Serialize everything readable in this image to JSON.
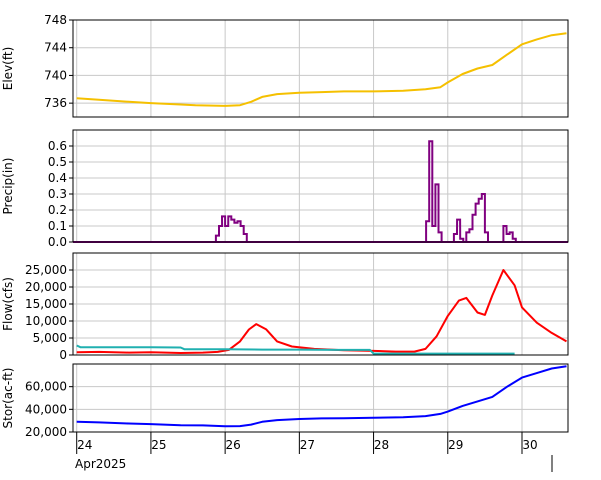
{
  "chart_data": [
    {
      "type": "line",
      "ylabel": "Elev(ft)",
      "ylim": [
        734,
        748
      ],
      "yticks": [
        736,
        740,
        744,
        748
      ],
      "ytick_labels": [
        "736",
        "740",
        "744",
        "748"
      ],
      "color": "#f5c000",
      "x": [
        24.0,
        24.3,
        24.7,
        25.0,
        25.4,
        25.6,
        26.0,
        26.2,
        26.35,
        26.5,
        26.7,
        27.0,
        27.3,
        27.6,
        28.0,
        28.4,
        28.7,
        28.9,
        29.0,
        29.2,
        29.4,
        29.6,
        29.8,
        30.0,
        30.2,
        30.4,
        30.6
      ],
      "values": [
        736.7,
        736.5,
        736.2,
        736.0,
        735.8,
        735.7,
        735.6,
        735.7,
        736.2,
        736.9,
        737.3,
        737.5,
        737.6,
        737.7,
        737.7,
        737.8,
        738.0,
        738.3,
        739.0,
        740.2,
        741.0,
        741.5,
        743.0,
        744.5,
        745.2,
        745.8,
        746.1
      ]
    },
    {
      "type": "bar",
      "ylabel": "Precip(in)",
      "ylim": [
        0,
        0.7
      ],
      "yticks": [
        0,
        0.1,
        0.2,
        0.3,
        0.4,
        0.5,
        0.6
      ],
      "ytick_labels": [
        "0.0",
        "0.1",
        "0.2",
        "0.3",
        "0.4",
        "0.5",
        "0.6"
      ],
      "color": "#800080",
      "step_hours": 1,
      "x": [
        25.875,
        25.917,
        25.958,
        26.0,
        26.042,
        26.083,
        26.125,
        26.167,
        26.208,
        26.25,
        26.292,
        28.708,
        28.75,
        28.792,
        28.833,
        28.875,
        29.083,
        29.125,
        29.167,
        29.25,
        29.292,
        29.333,
        29.375,
        29.417,
        29.458,
        29.5,
        29.542,
        29.75,
        29.792,
        29.833,
        29.875
      ],
      "values": [
        0.04,
        0.1,
        0.16,
        0.1,
        0.16,
        0.14,
        0.12,
        0.13,
        0.1,
        0.05,
        0.0,
        0.13,
        0.63,
        0.1,
        0.36,
        0.06,
        0.05,
        0.14,
        0.02,
        0.06,
        0.08,
        0.17,
        0.24,
        0.27,
        0.3,
        0.06,
        0.0,
        0.1,
        0.05,
        0.06,
        0.02
      ]
    },
    {
      "type": "line",
      "ylabel": "Flow(cfs)",
      "ylim": [
        0,
        30000
      ],
      "yticks": [
        0,
        5000,
        10000,
        15000,
        20000,
        25000
      ],
      "ytick_labels": [
        "0",
        "5,000",
        "10,000",
        "15,000",
        "20,000",
        "25,000"
      ],
      "series": [
        {
          "color": "#ff0000",
          "x": [
            24.0,
            24.3,
            24.7,
            25.0,
            25.4,
            25.7,
            25.9,
            26.05,
            26.2,
            26.32,
            26.42,
            26.55,
            26.7,
            26.9,
            27.2,
            27.6,
            28.0,
            28.3,
            28.55,
            28.7,
            28.85,
            29.0,
            29.15,
            29.25,
            29.4,
            29.5,
            29.6,
            29.75,
            29.9,
            30.0,
            30.2,
            30.4,
            30.6
          ],
          "values": [
            800,
            900,
            700,
            800,
            600,
            700,
            900,
            1500,
            4000,
            7500,
            9100,
            7600,
            4000,
            2500,
            1800,
            1400,
            1200,
            1000,
            1000,
            1800,
            5500,
            11500,
            16000,
            16800,
            12500,
            11800,
            17500,
            25000,
            20500,
            14000,
            9500,
            6500,
            4000
          ]
        },
        {
          "color": "#20b0b0",
          "x": [
            24.0,
            24.05,
            25.0,
            25.4,
            25.45,
            26.0,
            26.5,
            27.0,
            27.5,
            27.95,
            28.0,
            28.5,
            29.0,
            29.5,
            29.9
          ],
          "values": [
            2800,
            2300,
            2300,
            2200,
            1700,
            1700,
            1600,
            1600,
            1500,
            1500,
            400,
            400,
            400,
            400,
            400
          ]
        }
      ]
    },
    {
      "type": "line",
      "ylabel": "Stor(ac-ft)",
      "ylim": [
        20000,
        80000
      ],
      "yticks": [
        20000,
        40000,
        60000
      ],
      "ytick_labels": [
        "20,000",
        "40,000",
        "60,000"
      ],
      "color": "#0000ff",
      "x": [
        24.0,
        24.3,
        24.7,
        25.0,
        25.4,
        25.7,
        26.0,
        26.2,
        26.35,
        26.5,
        26.7,
        27.0,
        27.3,
        27.6,
        28.0,
        28.4,
        28.7,
        28.9,
        29.0,
        29.2,
        29.4,
        29.6,
        29.8,
        30.0,
        30.2,
        30.4,
        30.6
      ],
      "values": [
        29000,
        28500,
        27500,
        27000,
        26000,
        25800,
        25000,
        25200,
        26500,
        29000,
        30500,
        31500,
        32000,
        32200,
        32500,
        33000,
        34000,
        36000,
        38000,
        43000,
        47000,
        51000,
        60000,
        68000,
        72000,
        76000,
        78000
      ]
    }
  ],
  "x_axis": {
    "ticks": [
      "24",
      "25",
      "26",
      "27",
      "28",
      "29",
      "30"
    ],
    "month_label": "Apr2025",
    "range": [
      23.95,
      30.62
    ]
  }
}
